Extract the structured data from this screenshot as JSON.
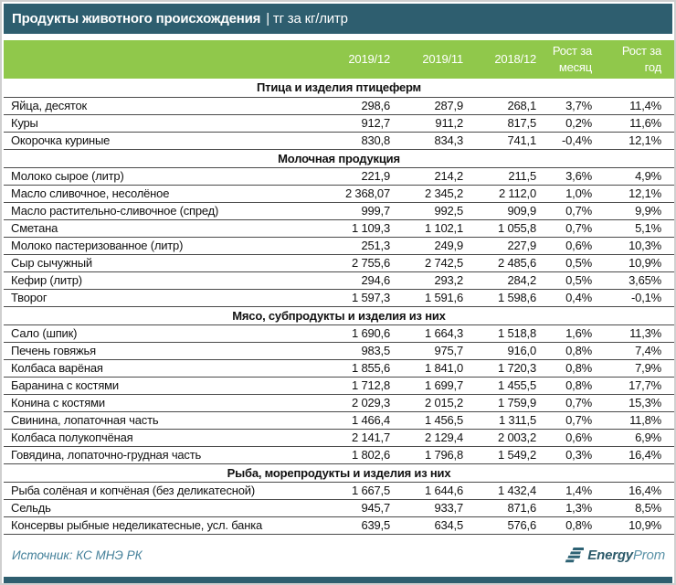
{
  "title": {
    "main": "Продукты животного происхождения",
    "unit": "| тг за кг/литр"
  },
  "colors": {
    "header_teal": "#2e5e6f",
    "header_green": "#90c84b",
    "row_line": "#4a4a4a",
    "source_text": "#44809a",
    "logo_dark": "#2c5a6a",
    "logo_light": "#5b93a8"
  },
  "chart_data": {
    "type": "table",
    "title": "Продукты животного происхождения",
    "unit": "тг за кг/литр",
    "columns": [
      "2019/12",
      "2019/11",
      "2018/12",
      "Рост за месяц",
      "Рост за год"
    ],
    "sections": [
      {
        "title": "Птица и изделия птицеферм",
        "rows": [
          {
            "name": "Яйца, десяток",
            "values": [
              "298,6",
              "287,9",
              "268,1",
              "3,7%",
              "11,4%"
            ]
          },
          {
            "name": "Куры",
            "values": [
              "912,7",
              "911,2",
              "817,5",
              "0,2%",
              "11,6%"
            ]
          },
          {
            "name": "Окорочка куриные",
            "values": [
              "830,8",
              "834,3",
              "741,1",
              "-0,4%",
              "12,1%"
            ]
          }
        ]
      },
      {
        "title": "Молочная продукция",
        "rows": [
          {
            "name": "Молоко сырое (литр)",
            "values": [
              "221,9",
              "214,2",
              "211,5",
              "3,6%",
              "4,9%"
            ]
          },
          {
            "name": "Масло сливочное, несолёное",
            "values": [
              "2 368,07",
              "2 345,2",
              "2 112,0",
              "1,0%",
              "12,1%"
            ]
          },
          {
            "name": "Масло растительно-сливочное (спред)",
            "values": [
              "999,7",
              "992,5",
              "909,9",
              "0,7%",
              "9,9%"
            ]
          },
          {
            "name": "Сметана",
            "values": [
              "1 109,3",
              "1 102,1",
              "1 055,8",
              "0,7%",
              "5,1%"
            ]
          },
          {
            "name": "Молоко пастеризованное (литр)",
            "values": [
              "251,3",
              "249,9",
              "227,9",
              "0,6%",
              "10,3%"
            ]
          },
          {
            "name": "Сыр сычужный",
            "values": [
              "2 755,6",
              "2 742,5",
              "2 485,6",
              "0,5%",
              "10,9%"
            ]
          },
          {
            "name": "Кефир (литр)",
            "values": [
              "294,6",
              "293,2",
              "284,2",
              "0,5%",
              "3,65%"
            ]
          },
          {
            "name": "Творог",
            "values": [
              "1 597,3",
              "1 591,6",
              "1 598,6",
              "0,4%",
              "-0,1%"
            ]
          }
        ]
      },
      {
        "title": "Мясо, субпродукты и изделия из них",
        "rows": [
          {
            "name": "Сало (шпик)",
            "values": [
              "1 690,6",
              "1 664,3",
              "1 518,8",
              "1,6%",
              "11,3%"
            ]
          },
          {
            "name": "Печень говяжья",
            "values": [
              "983,5",
              "975,7",
              "916,0",
              "0,8%",
              "7,4%"
            ]
          },
          {
            "name": "Колбаса варёная",
            "values": [
              "1 855,6",
              "1 841,0",
              "1 720,3",
              "0,8%",
              "7,9%"
            ]
          },
          {
            "name": "Баранина с костями",
            "values": [
              "1 712,8",
              "1 699,7",
              "1 455,5",
              "0,8%",
              "17,7%"
            ]
          },
          {
            "name": "Конина с костями",
            "values": [
              "2 029,3",
              "2 015,2",
              "1 759,9",
              "0,7%",
              "15,3%"
            ]
          },
          {
            "name": "Свинина, лопаточная часть",
            "values": [
              "1 466,4",
              "1 456,5",
              "1 311,5",
              "0,7%",
              "11,8%"
            ]
          },
          {
            "name": "Колбаса полукопчёная",
            "values": [
              "2 141,7",
              "2 129,4",
              "2 003,2",
              "0,6%",
              "6,9%"
            ]
          },
          {
            "name": "Говядина, лопаточно-грудная часть",
            "values": [
              "1 802,6",
              "1 796,8",
              "1 549,2",
              "0,3%",
              "16,4%"
            ]
          }
        ]
      },
      {
        "title": "Рыба, морепродукты и изделия из них",
        "rows": [
          {
            "name": "Рыба солёная и копчёная (без деликатесной)",
            "values": [
              "1 667,5",
              "1 644,6",
              "1 432,4",
              "1,4%",
              "16,4%"
            ]
          },
          {
            "name": "Сельдь",
            "values": [
              "945,7",
              "933,7",
              "871,6",
              "1,3%",
              "8,5%"
            ]
          },
          {
            "name": "Консервы рыбные неделикатесные, усл. банка",
            "values": [
              "639,5",
              "634,5",
              "576,6",
              "0,8%",
              "10,9%"
            ]
          }
        ]
      }
    ]
  },
  "footer": {
    "source": "Источник: КС МНЭ РК",
    "logo_bold": "Energy",
    "logo_regular": "Prom"
  }
}
